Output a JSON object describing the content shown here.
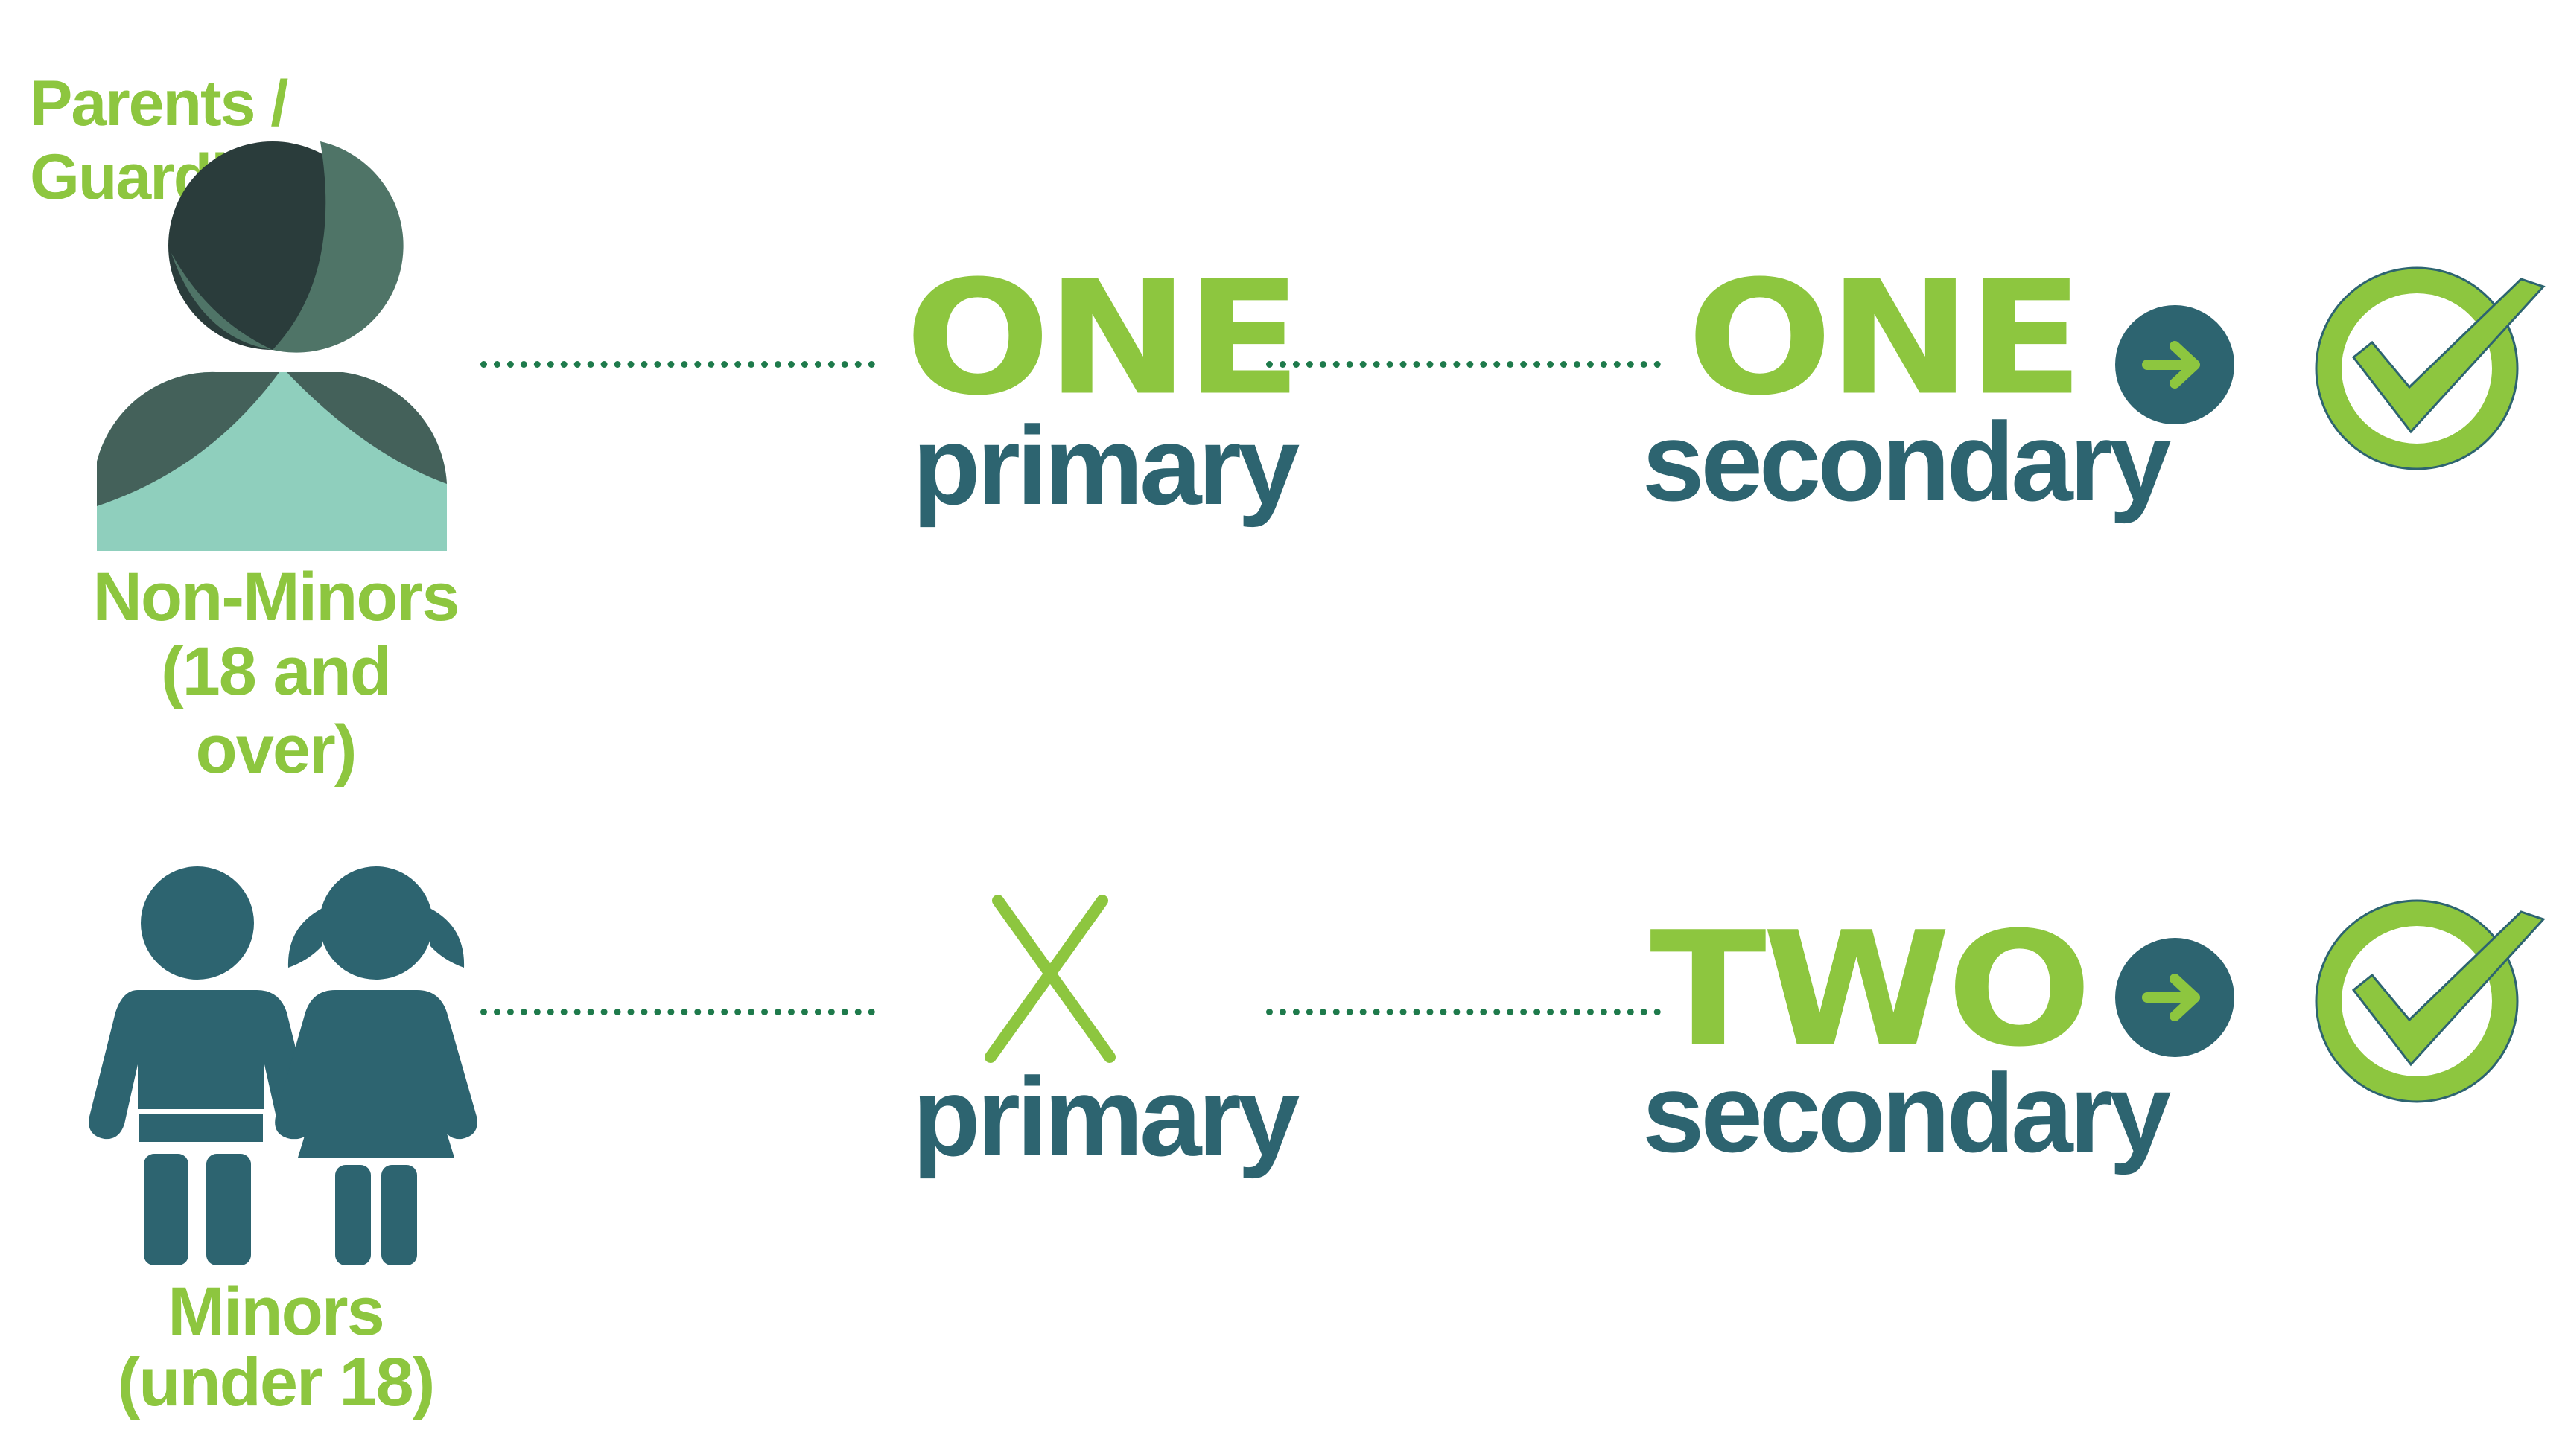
{
  "top_label": "Parents / Guardians",
  "rows": [
    {
      "group_label_line1": "Non-Minors",
      "group_label_line2": "(18 and over)",
      "primary_count": "ONE",
      "primary_label": "primary",
      "secondary_count": "ONE",
      "secondary_label": "secondary"
    },
    {
      "group_label_line1": "Minors",
      "group_label_line2": "(under 18)",
      "primary_count": "",
      "primary_label": "primary",
      "secondary_count": "TWO",
      "secondary_label": "secondary"
    }
  ],
  "colors": {
    "green": "#8dc63f",
    "teal": "#2d6470",
    "dark_green_dots": "#1e7a4b",
    "mint": "#8fcfbd"
  },
  "icons": [
    "adult-person-icon",
    "children-icon",
    "x-mark-icon",
    "arrow-right-icon",
    "checkmark-circle-icon"
  ]
}
